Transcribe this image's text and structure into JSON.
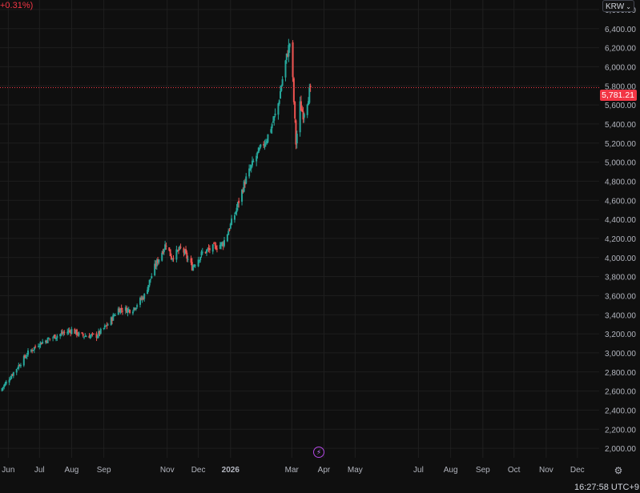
{
  "header": {
    "change_text": "+0.31%)",
    "currency_label": "KRW",
    "chevron_icon": "chevron-down-icon"
  },
  "last_price_label": "5,781.21",
  "clock_text": "16:27:58 UTC+9",
  "icons": {
    "lightning": "lightning-icon",
    "settings": "gear-icon"
  },
  "colors": {
    "up": "#26a69a",
    "down": "#ef5350",
    "grid": "#1f1f1f",
    "background": "#0f0f0f",
    "price_line": "#f23645"
  },
  "chart_data": {
    "type": "candlestick",
    "grid": true,
    "y_axis_position": "right",
    "ylim": [
      1900,
      6700
    ],
    "y_ticks": [
      2000,
      2200,
      2400,
      2600,
      2800,
      3000,
      3200,
      3400,
      3600,
      3800,
      4000,
      4200,
      4400,
      4600,
      4800,
      5000,
      5200,
      5400,
      5600,
      5800,
      6000,
      6200,
      6400,
      6600
    ],
    "y_tick_labels": [
      "2,000.00",
      "2,200.00",
      "2,400.00",
      "2,600.00",
      "2,800.00",
      "3,000.00",
      "3,200.00",
      "3,400.00",
      "3,600.00",
      "3,800.00",
      "4,000.00",
      "4,200.00",
      "4,400.00",
      "4,600.00",
      "4,800.00",
      "5,000.00",
      "5,200.00",
      "5,400.00",
      "5,600.00",
      "5,800.00",
      "6,000.00",
      "6,200.00",
      "6,400.00",
      "6,600.00"
    ],
    "x_range": [
      "2025-05-24",
      "2026-12-22"
    ],
    "x_ticks": [
      {
        "date": "2025-06-01",
        "label": "Jun"
      },
      {
        "date": "2025-07-01",
        "label": "Jul"
      },
      {
        "date": "2025-08-01",
        "label": "Aug"
      },
      {
        "date": "2025-09-01",
        "label": "Sep"
      },
      {
        "date": "2025-11-01",
        "label": "Nov"
      },
      {
        "date": "2025-12-01",
        "label": "Dec"
      },
      {
        "date": "2026-01-01",
        "label": "2026"
      },
      {
        "date": "2026-03-01",
        "label": "Mar"
      },
      {
        "date": "2026-04-01",
        "label": "Apr"
      },
      {
        "date": "2026-05-01",
        "label": "May"
      },
      {
        "date": "2026-07-01",
        "label": "Jul"
      },
      {
        "date": "2026-08-01",
        "label": "Aug"
      },
      {
        "date": "2026-09-01",
        "label": "Sep"
      },
      {
        "date": "2026-10-01",
        "label": "Oct"
      },
      {
        "date": "2026-11-01",
        "label": "Nov"
      },
      {
        "date": "2026-12-01",
        "label": "Dec"
      }
    ],
    "last_price": 5781.21,
    "path_anchors": [
      {
        "date": "2025-05-24",
        "close": 2600
      },
      {
        "date": "2025-06-05",
        "close": 2780
      },
      {
        "date": "2025-06-20",
        "close": 3000
      },
      {
        "date": "2025-07-01",
        "close": 3100
      },
      {
        "date": "2025-07-15",
        "close": 3170
      },
      {
        "date": "2025-08-01",
        "close": 3240
      },
      {
        "date": "2025-08-10",
        "close": 3180
      },
      {
        "date": "2025-08-25",
        "close": 3180
      },
      {
        "date": "2025-09-05",
        "close": 3300
      },
      {
        "date": "2025-09-15",
        "close": 3460
      },
      {
        "date": "2025-09-28",
        "close": 3450
      },
      {
        "date": "2025-10-10",
        "close": 3600
      },
      {
        "date": "2025-10-20",
        "close": 3900
      },
      {
        "date": "2025-10-31",
        "close": 4150
      },
      {
        "date": "2025-11-05",
        "close": 4000
      },
      {
        "date": "2025-11-15",
        "close": 4100
      },
      {
        "date": "2025-11-25",
        "close": 3900
      },
      {
        "date": "2025-12-05",
        "close": 4050
      },
      {
        "date": "2025-12-15",
        "close": 4100
      },
      {
        "date": "2025-12-25",
        "close": 4150
      },
      {
        "date": "2026-01-05",
        "close": 4450
      },
      {
        "date": "2026-01-15",
        "close": 4800
      },
      {
        "date": "2026-01-25",
        "close": 5050
      },
      {
        "date": "2026-02-05",
        "close": 5250
      },
      {
        "date": "2026-02-15",
        "close": 5550
      },
      {
        "date": "2026-02-22",
        "close": 6000
      },
      {
        "date": "2026-02-27",
        "close": 6250
      },
      {
        "date": "2026-03-02",
        "close": 5850
      },
      {
        "date": "2026-03-05",
        "close": 5200
      },
      {
        "date": "2026-03-09",
        "close": 5600
      },
      {
        "date": "2026-03-12",
        "close": 5500
      },
      {
        "date": "2026-03-16",
        "close": 5650
      },
      {
        "date": "2026-03-19",
        "close": 5781.21
      }
    ]
  }
}
